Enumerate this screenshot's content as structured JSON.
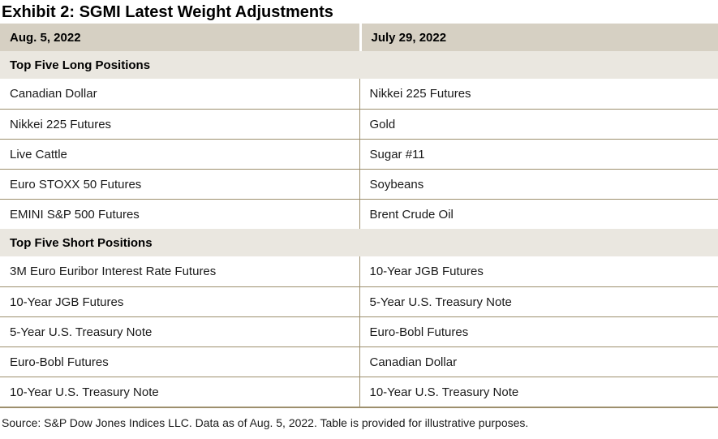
{
  "title": "Exhibit 2: SGMI Latest Weight Adjustments",
  "table": {
    "columns": [
      {
        "label": "Aug. 5, 2022"
      },
      {
        "label": "July 29, 2022"
      }
    ],
    "sections": [
      {
        "label": "Top Five Long Positions",
        "rows": [
          {
            "left": "Canadian Dollar",
            "right": "Nikkei 225 Futures"
          },
          {
            "left": "Nikkei 225 Futures",
            "right": "Gold"
          },
          {
            "left": "Live Cattle",
            "right": "Sugar #11"
          },
          {
            "left": "Euro STOXX 50 Futures",
            "right": "Soybeans"
          },
          {
            "left": "EMINI S&P 500 Futures",
            "right": "Brent Crude Oil"
          }
        ]
      },
      {
        "label": "Top Five Short Positions",
        "rows": [
          {
            "left": "3M Euro Euribor Interest Rate Futures",
            "right": "10-Year JGB Futures"
          },
          {
            "left": "10-Year JGB Futures",
            "right": "5-Year U.S. Treasury Note"
          },
          {
            "left": "5-Year U.S. Treasury Note",
            "right": "Euro-Bobl Futures"
          },
          {
            "left": "Euro-Bobl Futures",
            "right": "Canadian Dollar"
          },
          {
            "left": "10-Year U.S. Treasury Note",
            "right": "10-Year U.S. Treasury Note"
          }
        ]
      }
    ]
  },
  "source": "Source: S&P Dow Jones Indices LLC. Data as of Aug. 5, 2022. Table is provided for illustrative purposes.",
  "colors": {
    "header_bg": "#d6d0c3",
    "section_bg": "#eae7e0",
    "border": "#9d8f6d",
    "text": "#1a1a1a"
  }
}
